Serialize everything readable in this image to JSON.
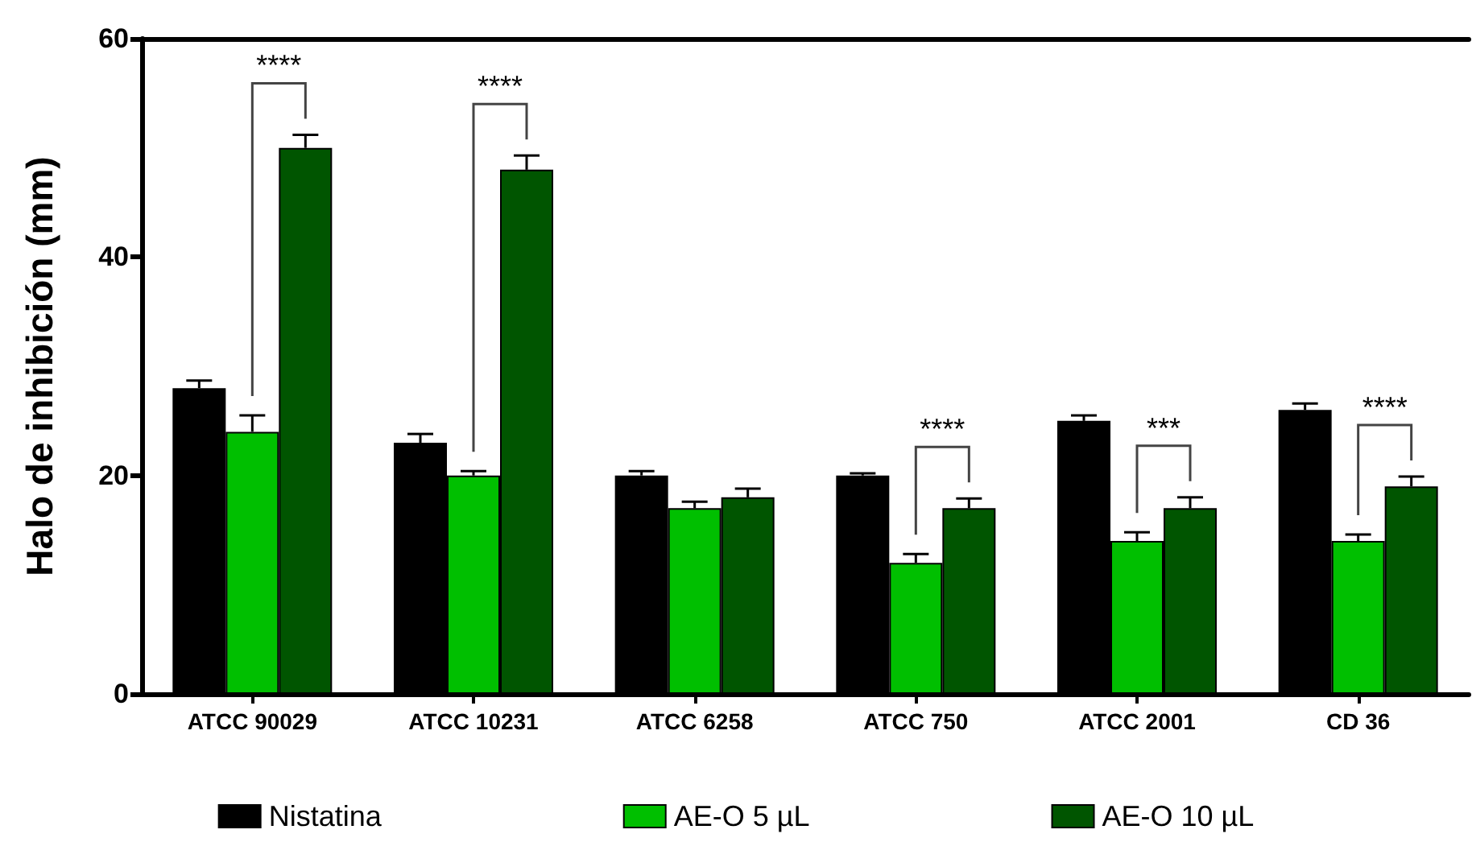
{
  "chart_data": {
    "type": "bar",
    "ylabel": "Halo de inhibición (mm)",
    "categories": [
      "ATCC 90029",
      "ATCC 10231",
      "ATCC 6258",
      "ATCC 750",
      "ATCC 2001",
      "CD 36"
    ],
    "series": [
      {
        "name": "Nistatina",
        "color": "#000000",
        "values": [
          28,
          23,
          20,
          20,
          25,
          26
        ],
        "errors": [
          [
            28,
            28.7
          ],
          [
            23,
            23.8
          ],
          [
            20,
            20.4
          ],
          [
            20,
            20.2
          ],
          [
            25,
            25.5
          ],
          [
            26,
            26.6
          ]
        ]
      },
      {
        "name": "AE-O 5 µL",
        "color": "#00bf00",
        "values": [
          24,
          20,
          17,
          12,
          14,
          14
        ],
        "errors": [
          [
            24,
            25.5
          ],
          [
            20,
            20.4
          ],
          [
            17,
            17.6
          ],
          [
            12,
            12.8
          ],
          [
            14,
            14.8
          ],
          [
            14,
            14.6
          ]
        ]
      },
      {
        "name": "AE-O 10 µL",
        "color": "#005500",
        "values": [
          50,
          48,
          18,
          17,
          17,
          19
        ],
        "errors": [
          [
            50,
            51.2
          ],
          [
            48,
            49.3
          ],
          [
            18,
            18.8
          ],
          [
            17,
            17.9
          ],
          [
            17,
            18
          ],
          [
            19,
            19.9
          ]
        ]
      }
    ],
    "annotations": [
      "****",
      "****",
      "****",
      "***",
      "****"
    ],
    "ylim": [
      0,
      60
    ],
    "yticks": [
      0,
      20,
      40,
      60
    ],
    "grid": false,
    "legend": "bottom"
  }
}
